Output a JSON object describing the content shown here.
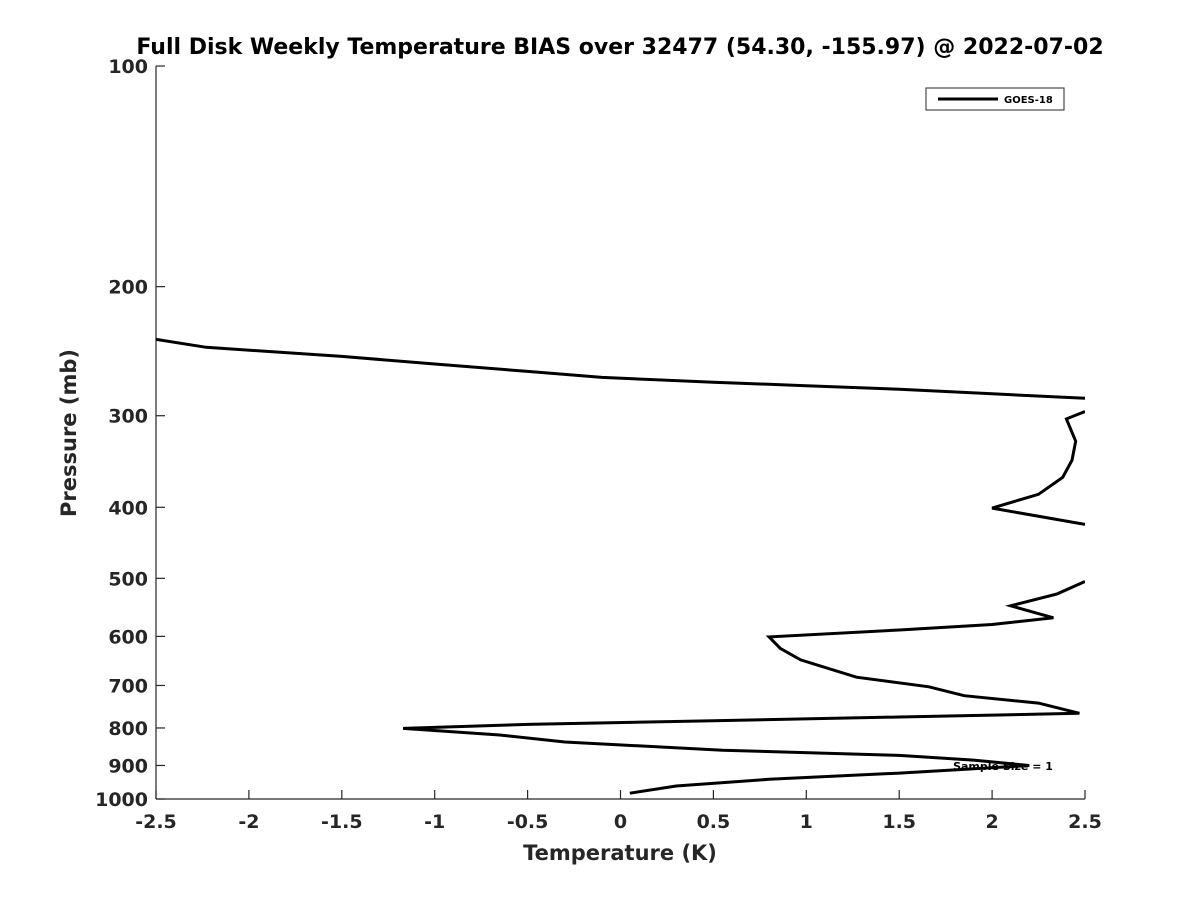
{
  "chart_data": {
    "type": "line",
    "title": "Full Disk Weekly Temperature BIAS over 32477 (54.30, -155.97) @ 2022-07-02",
    "xlabel": "Temperature (K)",
    "ylabel": "Pressure (mb)",
    "xlim": [
      -2.5,
      2.5
    ],
    "ylim": [
      100,
      1000
    ],
    "y_scale": "log",
    "y_reversed": true,
    "x_ticks": [
      "-2.5",
      "-2",
      "-1.5",
      "-1",
      "-0.5",
      "0",
      "0.5",
      "1",
      "1.5",
      "2",
      "2.5"
    ],
    "y_ticks": [
      "100",
      "200",
      "300",
      "400",
      "500",
      "600",
      "700",
      "800",
      "900",
      "1000"
    ],
    "grid": false,
    "legend_position": "top-right",
    "annotation": "Sample Size = 1",
    "line_color": "#000000",
    "series": [
      {
        "name": "GOES-18",
        "segments": [
          [
            [
              -2.5,
              236
            ],
            [
              -2.23,
              242
            ],
            [
              -1.5,
              249
            ],
            [
              -1.0,
              255
            ],
            [
              -0.5,
              261
            ],
            [
              -0.1,
              266
            ],
            [
              0.5,
              270
            ],
            [
              1.0,
              273
            ],
            [
              1.5,
              276
            ],
            [
              2.0,
              280
            ],
            [
              2.5,
              284
            ]
          ],
          [
            [
              2.5,
              296
            ],
            [
              2.4,
              303
            ],
            [
              2.45,
              325
            ],
            [
              2.43,
              345
            ],
            [
              2.38,
              364
            ],
            [
              2.25,
              384
            ],
            [
              2.0,
              401
            ],
            [
              2.5,
              422
            ]
          ],
          [
            [
              2.5,
              505
            ],
            [
              2.35,
              525
            ],
            [
              2.1,
              545
            ],
            [
              2.33,
              566
            ],
            [
              2.0,
              578
            ],
            [
              1.5,
              588
            ],
            [
              0.8,
              601
            ],
            [
              0.86,
              623
            ],
            [
              0.97,
              646
            ],
            [
              1.27,
              682
            ],
            [
              1.66,
              703
            ],
            [
              1.85,
              723
            ],
            [
              2.25,
              740
            ],
            [
              2.47,
              764
            ],
            [
              1.5,
              773
            ],
            [
              0.5,
              782
            ],
            [
              -0.5,
              791
            ],
            [
              -1.17,
              801
            ],
            [
              -0.65,
              818
            ],
            [
              -0.3,
              836
            ],
            [
              0.55,
              858
            ],
            [
              1.5,
              872
            ],
            [
              1.9,
              885
            ],
            [
              2.2,
              900
            ],
            [
              1.5,
              922
            ],
            [
              0.8,
              940
            ],
            [
              0.3,
              960
            ],
            [
              0.05,
              982
            ]
          ]
        ]
      }
    ]
  }
}
